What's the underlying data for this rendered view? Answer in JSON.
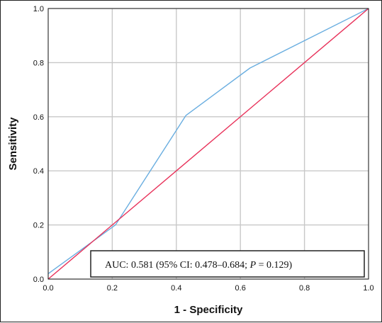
{
  "chart_data": {
    "type": "line",
    "title": "",
    "xlabel": "1 - Specificity",
    "ylabel": "Sensitivity",
    "xlim": [
      0,
      1
    ],
    "ylim": [
      0,
      1
    ],
    "grid": true,
    "x_ticks": [
      "0.0",
      "0.2",
      "0.4",
      "0.6",
      "0.8",
      "1.0"
    ],
    "y_ticks": [
      "0.0",
      "0.2",
      "0.4",
      "0.6",
      "0.8",
      "1.0"
    ],
    "series": [
      {
        "color": "#6aaee0",
        "points": [
          [
            0,
            0.02
          ],
          [
            0.21,
            0.2
          ],
          [
            0.43,
            0.605
          ],
          [
            0.63,
            0.78
          ],
          [
            1.0,
            1.0
          ]
        ]
      },
      {
        "color": "#e8325a",
        "points": [
          [
            0,
            0
          ],
          [
            1.0,
            1.0
          ]
        ]
      }
    ],
    "annotation": {
      "parts": [
        {
          "text": "AUC: 0.581 (95% CI: 0.478–0.684; ",
          "italic": false
        },
        {
          "text": "P",
          "italic": true
        },
        {
          "text": " = 0.129)",
          "italic": false
        }
      ]
    },
    "colors": {
      "grid": "#c8c8c8",
      "axis": "#222222",
      "roc_curve": "#6aaee0",
      "reference_line": "#e8325a"
    }
  }
}
